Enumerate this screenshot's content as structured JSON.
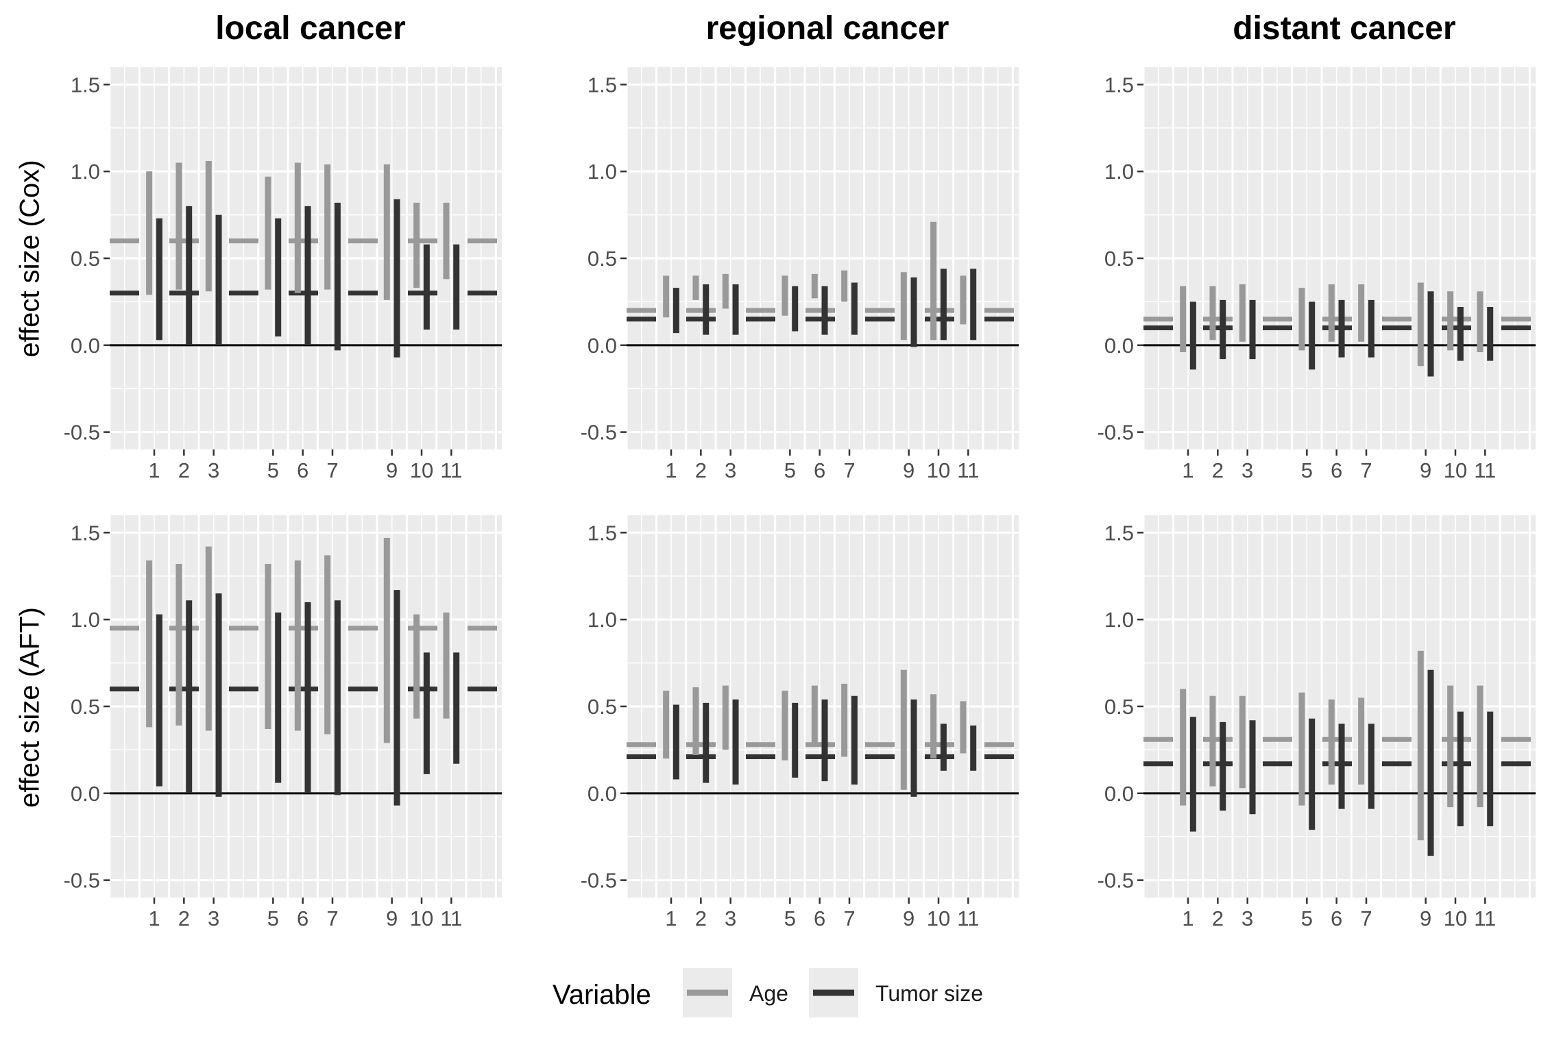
{
  "facets": {
    "columns": [
      "local cancer",
      "regional cancer",
      "distant cancer"
    ],
    "rows": [
      "effect size (Cox)",
      "effect size (AFT)"
    ]
  },
  "axes": {
    "y_ticks": [
      "1.5",
      "1.0",
      "0.5",
      "0.0",
      "-0.5"
    ],
    "x_ticks": [
      "1",
      "2",
      "3",
      "5",
      "6",
      "7",
      "9",
      "10",
      "11"
    ]
  },
  "legend": {
    "title": "Variable",
    "items": [
      {
        "label": "Age",
        "color": "#999999"
      },
      {
        "label": "Tumor size",
        "color": "#333333"
      }
    ]
  },
  "colors": {
    "age": "#999999",
    "tumor": "#333333",
    "panel_bg": "#ebebeb",
    "grid": "#ffffff"
  },
  "chart_data": [
    {
      "type": "errorbar",
      "column": "local cancer",
      "row": "effect size (Cox)",
      "ylim": [
        -0.6,
        1.6
      ],
      "xlim": [
        -0.5,
        12.7
      ],
      "x_ticks": [
        1,
        2,
        3,
        5,
        6,
        7,
        9,
        10,
        11
      ],
      "series": [
        {
          "name": "Age",
          "color": "#999999",
          "true_value": 0.6,
          "lower": [
            0.29,
            0.32,
            0.31,
            0.32,
            0.3,
            0.32,
            0.26,
            0.33,
            0.38
          ],
          "upper": [
            1.0,
            1.05,
            1.06,
            0.97,
            1.05,
            1.04,
            1.04,
            0.82,
            0.82
          ]
        },
        {
          "name": "Tumor size",
          "color": "#333333",
          "true_value": 0.3,
          "lower": [
            0.03,
            0.0,
            0.0,
            0.05,
            0.0,
            -0.03,
            -0.07,
            0.09,
            0.09
          ],
          "upper": [
            0.73,
            0.8,
            0.75,
            0.73,
            0.8,
            0.82,
            0.84,
            0.58,
            0.58
          ]
        }
      ]
    },
    {
      "type": "errorbar",
      "column": "regional cancer",
      "row": "effect size (Cox)",
      "ylim": [
        -0.6,
        1.6
      ],
      "xlim": [
        -0.5,
        12.7
      ],
      "x_ticks": [
        1,
        2,
        3,
        5,
        6,
        7,
        9,
        10,
        11
      ],
      "series": [
        {
          "name": "Age",
          "color": "#999999",
          "true_value": 0.2,
          "lower": [
            0.16,
            0.26,
            0.21,
            0.17,
            0.27,
            0.25,
            0.03,
            0.03,
            0.12
          ],
          "upper": [
            0.4,
            0.4,
            0.41,
            0.4,
            0.41,
            0.43,
            0.42,
            0.71,
            0.4
          ]
        },
        {
          "name": "Tumor size",
          "color": "#333333",
          "true_value": 0.15,
          "lower": [
            0.07,
            0.06,
            0.06,
            0.08,
            0.06,
            0.06,
            -0.01,
            0.03,
            0.03
          ],
          "upper": [
            0.33,
            0.35,
            0.35,
            0.34,
            0.34,
            0.36,
            0.39,
            0.44,
            0.44
          ]
        }
      ]
    },
    {
      "type": "errorbar",
      "column": "distant cancer",
      "row": "effect size (Cox)",
      "ylim": [
        -0.6,
        1.6
      ],
      "xlim": [
        -0.5,
        12.7
      ],
      "x_ticks": [
        1,
        2,
        3,
        5,
        6,
        7,
        9,
        10,
        11
      ],
      "series": [
        {
          "name": "Age",
          "color": "#999999",
          "true_value": 0.15,
          "lower": [
            -0.04,
            0.03,
            0.02,
            -0.03,
            0.02,
            0.02,
            -0.12,
            -0.03,
            -0.04
          ],
          "upper": [
            0.34,
            0.34,
            0.35,
            0.33,
            0.35,
            0.35,
            0.36,
            0.31,
            0.31
          ]
        },
        {
          "name": "Tumor size",
          "color": "#333333",
          "true_value": 0.1,
          "lower": [
            -0.14,
            -0.08,
            -0.08,
            -0.14,
            -0.07,
            -0.07,
            -0.18,
            -0.09,
            -0.09
          ],
          "upper": [
            0.25,
            0.26,
            0.26,
            0.25,
            0.26,
            0.26,
            0.31,
            0.22,
            0.22
          ]
        }
      ]
    },
    {
      "type": "errorbar",
      "column": "local cancer",
      "row": "effect size (AFT)",
      "ylim": [
        -0.6,
        1.6
      ],
      "xlim": [
        -0.5,
        12.7
      ],
      "x_ticks": [
        1,
        2,
        3,
        5,
        6,
        7,
        9,
        10,
        11
      ],
      "series": [
        {
          "name": "Age",
          "color": "#999999",
          "true_value": 0.95,
          "lower": [
            0.38,
            0.39,
            0.36,
            0.37,
            0.36,
            0.34,
            0.29,
            0.43,
            0.43
          ],
          "upper": [
            1.34,
            1.32,
            1.42,
            1.32,
            1.34,
            1.37,
            1.47,
            1.03,
            1.04
          ]
        },
        {
          "name": "Tumor size",
          "color": "#333333",
          "true_value": 0.6,
          "lower": [
            0.04,
            0.0,
            -0.02,
            0.06,
            0.0,
            -0.01,
            -0.07,
            0.11,
            0.17
          ],
          "upper": [
            1.03,
            1.11,
            1.15,
            1.04,
            1.1,
            1.11,
            1.17,
            0.81,
            0.81
          ]
        }
      ]
    },
    {
      "type": "errorbar",
      "column": "regional cancer",
      "row": "effect size (AFT)",
      "ylim": [
        -0.6,
        1.6
      ],
      "xlim": [
        -0.5,
        12.7
      ],
      "x_ticks": [
        1,
        2,
        3,
        5,
        6,
        7,
        9,
        10,
        11
      ],
      "series": [
        {
          "name": "Age",
          "color": "#999999",
          "true_value": 0.28,
          "lower": [
            0.2,
            0.22,
            0.25,
            0.19,
            0.28,
            0.21,
            0.02,
            0.2,
            0.23
          ],
          "upper": [
            0.59,
            0.61,
            0.62,
            0.59,
            0.62,
            0.63,
            0.71,
            0.57,
            0.53
          ]
        },
        {
          "name": "Tumor size",
          "color": "#333333",
          "true_value": 0.21,
          "lower": [
            0.08,
            0.06,
            0.05,
            0.09,
            0.07,
            0.05,
            -0.02,
            0.13,
            0.13
          ],
          "upper": [
            0.51,
            0.52,
            0.54,
            0.52,
            0.54,
            0.56,
            0.54,
            0.4,
            0.39
          ]
        }
      ]
    },
    {
      "type": "errorbar",
      "column": "distant cancer",
      "row": "effect size (AFT)",
      "ylim": [
        -0.6,
        1.6
      ],
      "xlim": [
        -0.5,
        12.7
      ],
      "x_ticks": [
        1,
        2,
        3,
        5,
        6,
        7,
        9,
        10,
        11
      ],
      "series": [
        {
          "name": "Age",
          "color": "#999999",
          "true_value": 0.31,
          "lower": [
            -0.07,
            0.04,
            0.03,
            -0.07,
            0.05,
            0.05,
            -0.27,
            -0.08,
            -0.08
          ],
          "upper": [
            0.6,
            0.56,
            0.56,
            0.58,
            0.54,
            0.55,
            0.82,
            0.62,
            0.62
          ]
        },
        {
          "name": "Tumor size",
          "color": "#333333",
          "true_value": 0.17,
          "lower": [
            -0.22,
            -0.1,
            -0.12,
            -0.21,
            -0.09,
            -0.09,
            -0.36,
            -0.19,
            -0.19
          ],
          "upper": [
            0.44,
            0.41,
            0.42,
            0.43,
            0.4,
            0.4,
            0.71,
            0.47,
            0.47
          ]
        }
      ]
    }
  ]
}
